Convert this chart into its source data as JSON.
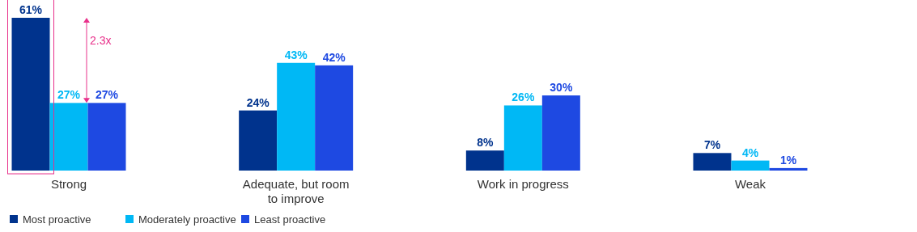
{
  "chart_data": {
    "type": "bar",
    "categories": [
      "Strong",
      "Adequate, but room to improve",
      "Work in progress",
      "Weak"
    ],
    "series": [
      {
        "name": "Most proactive",
        "color": "#00338d",
        "values": [
          61,
          24,
          8,
          7
        ],
        "value_labels": [
          "61%",
          "24%",
          "8%",
          "7%"
        ]
      },
      {
        "name": "Moderately proactive",
        "color": "#00b8f5",
        "values": [
          27,
          43,
          26,
          4
        ],
        "value_labels": [
          "27%",
          "43%",
          "26%",
          "4%"
        ]
      },
      {
        "name": "Least proactive",
        "color": "#1e49e2",
        "values": [
          27,
          42,
          30,
          1
        ],
        "value_labels": [
          "27%",
          "42%",
          "30%",
          "1%"
        ]
      }
    ],
    "legend": "bottom left",
    "annotations": [
      "2.3x"
    ]
  }
}
